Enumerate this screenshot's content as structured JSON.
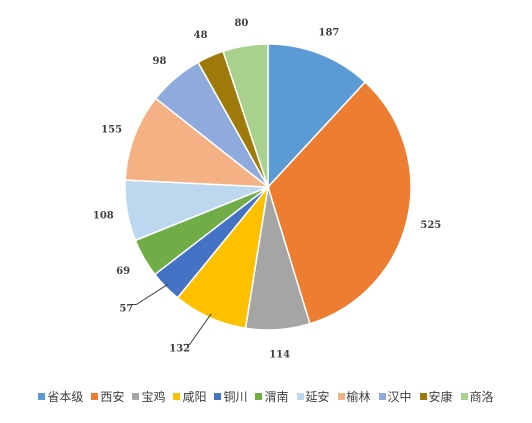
{
  "chart_data": {
    "type": "pie",
    "categories": [
      "省本级",
      "西安",
      "宝鸡",
      "咸阳",
      "铜川",
      "渭南",
      "延安",
      "榆林",
      "汉中",
      "安康",
      "商洛"
    ],
    "values": [
      187,
      525,
      114,
      132,
      57,
      69,
      108,
      155,
      98,
      48,
      80
    ],
    "colors": [
      "#5b9bd5",
      "#ed7d31",
      "#a5a5a5",
      "#ffc000",
      "#4472c4",
      "#70ad47",
      "#bdd7ee",
      "#f4b183",
      "#8faadc",
      "#9e7a0a",
      "#a9d18e"
    ],
    "start": "12 o'clock",
    "direction": "clockwise",
    "data_labels": true,
    "legend": "bottom"
  }
}
